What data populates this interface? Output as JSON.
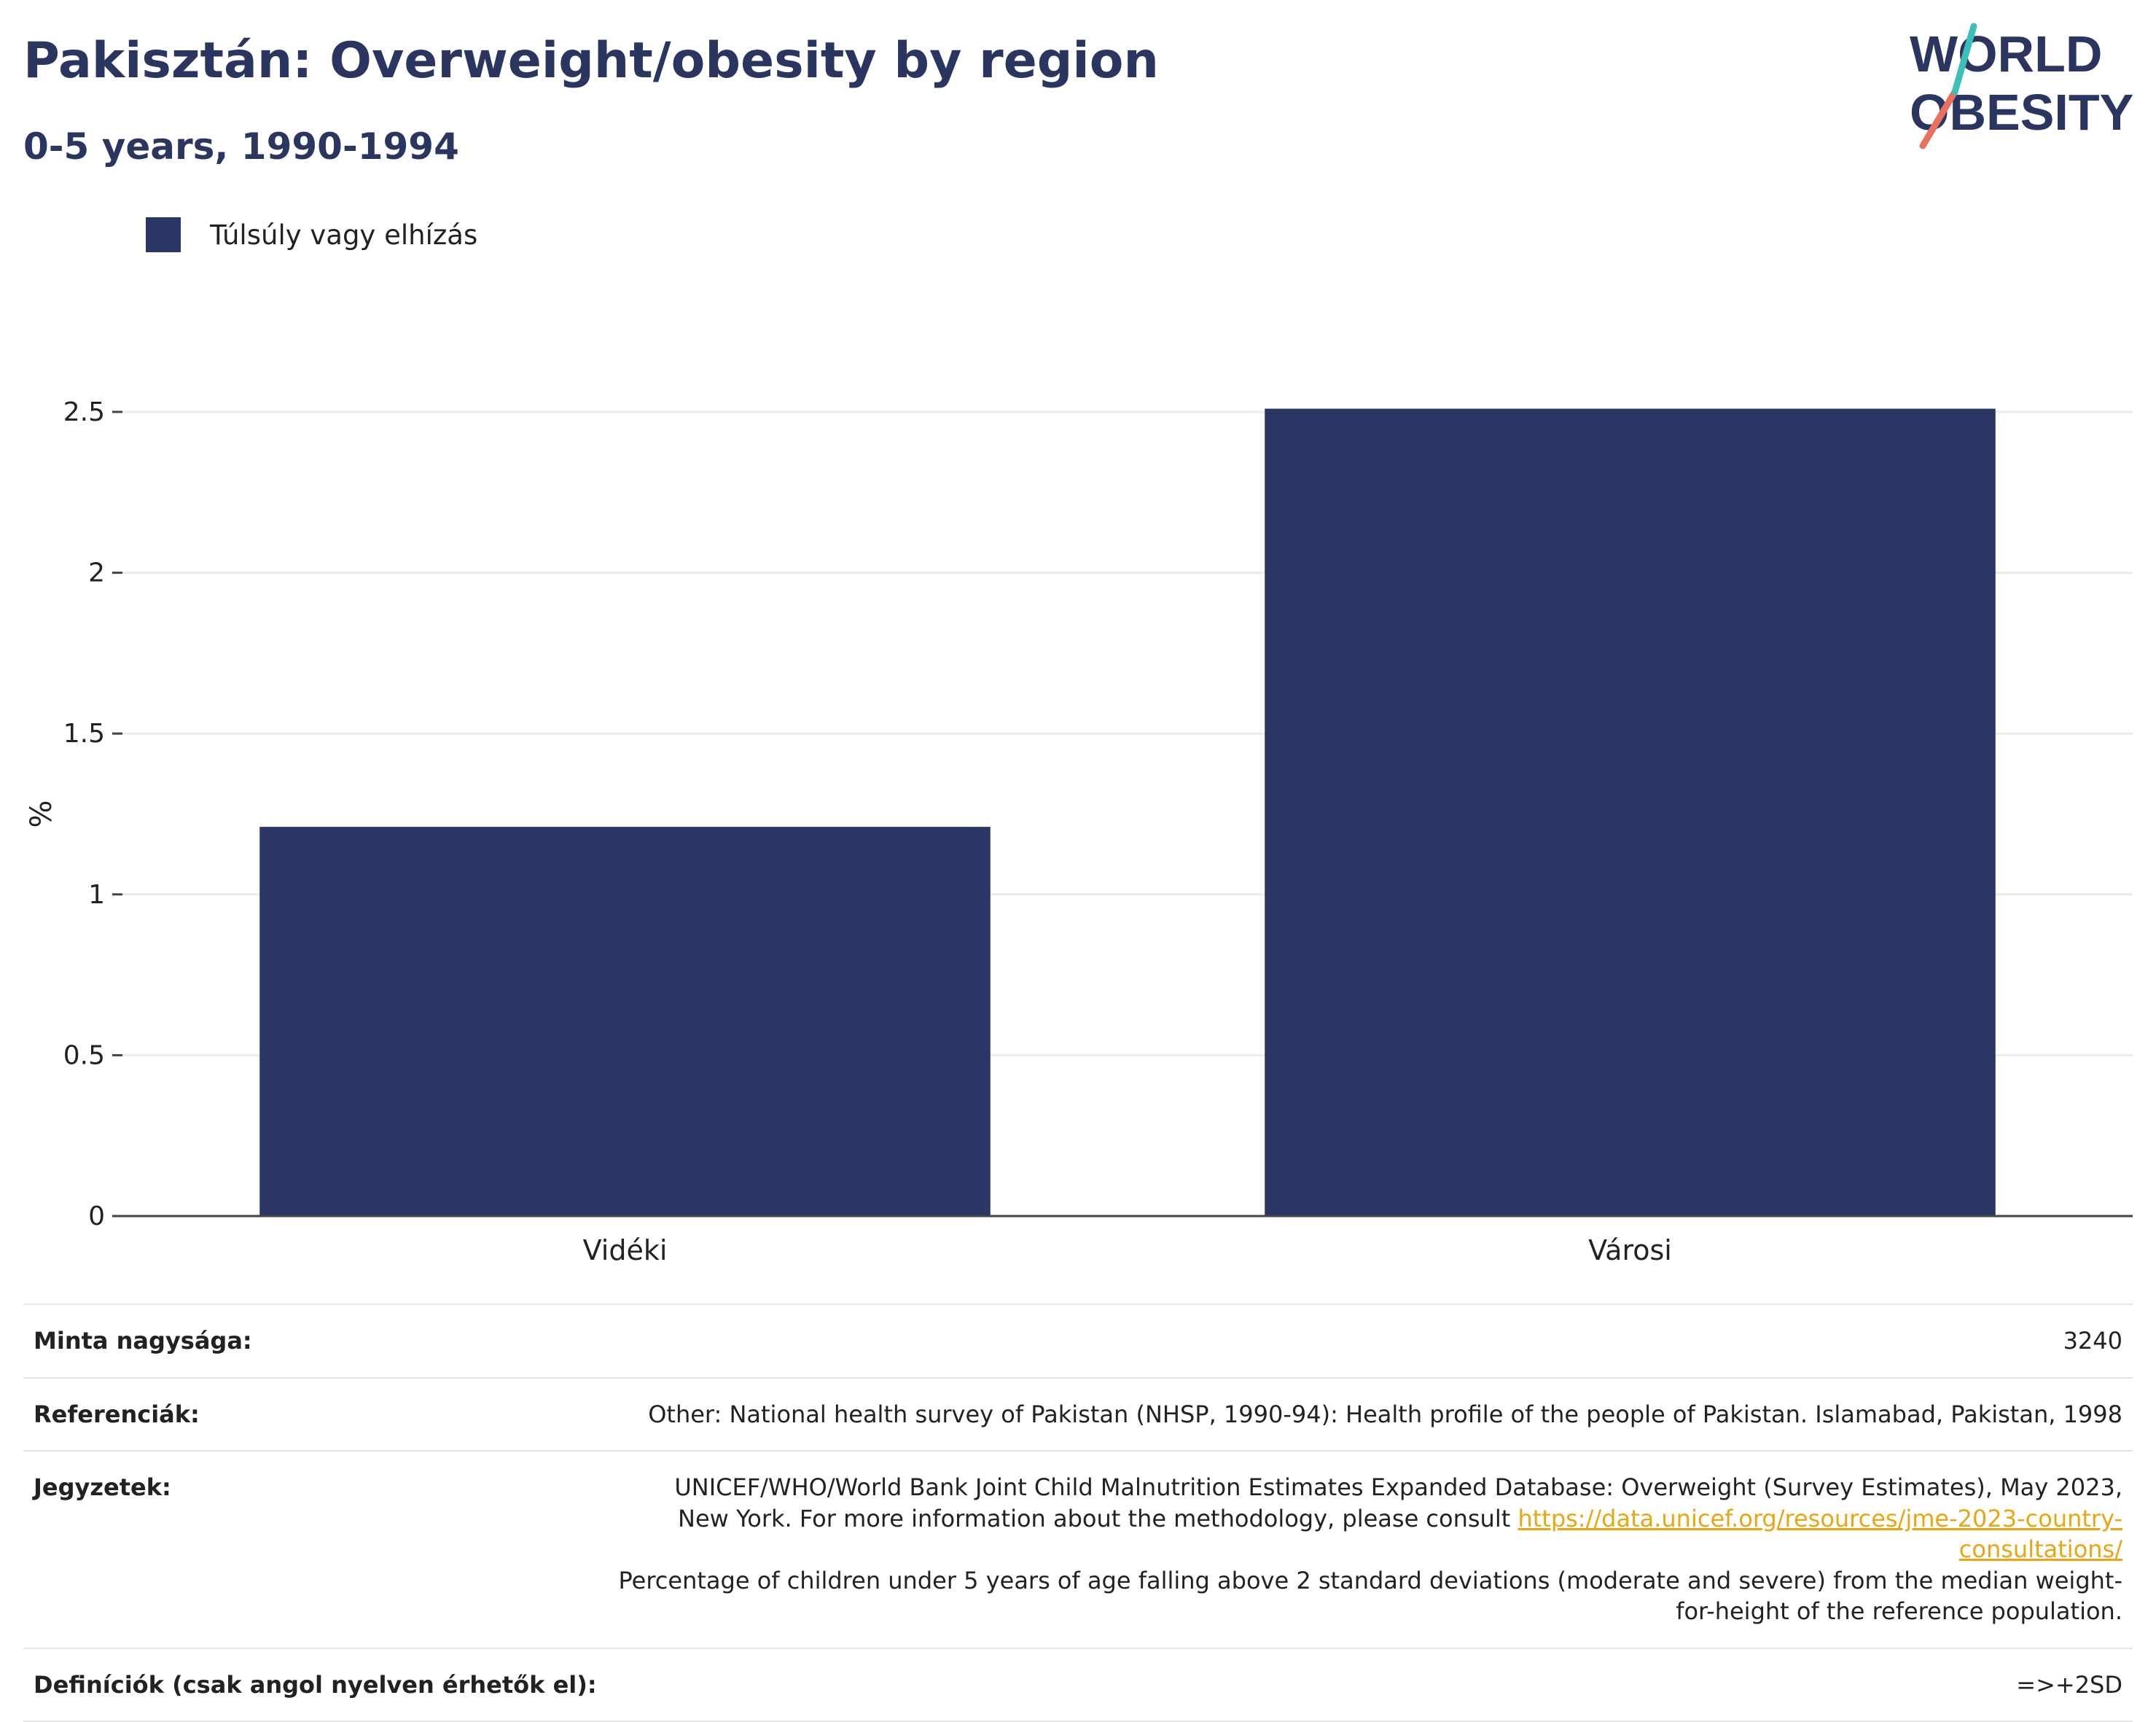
{
  "header": {
    "title": "Pakisztán: Overweight/obesity by region",
    "subtitle": "0-5 years, 1990-1994"
  },
  "logo": {
    "line1": "WORLD",
    "line2": "OBESITY"
  },
  "legend": {
    "label": "Túlsúly vagy elhízás"
  },
  "chart_data": {
    "type": "bar",
    "categories": [
      "Vidéki",
      "Városi"
    ],
    "series": [
      {
        "name": "Túlsúly vagy elhízás",
        "values": [
          1.21,
          2.51
        ],
        "color": "#2a3663"
      }
    ],
    "ylabel": "%",
    "ylim": [
      0,
      2.5
    ],
    "yticks": [
      0,
      0.5,
      1,
      1.5,
      2,
      2.5
    ],
    "ytick_labels": [
      "0",
      "0.5",
      "1",
      "1.5",
      "2",
      "2.5"
    ],
    "grid": true
  },
  "info": {
    "sample_label": "Minta nagysága:",
    "sample_value": "3240",
    "ref_label": "Referenciák:",
    "ref_value": "Other: National health survey of Pakistan (NHSP, 1990-94): Health profile of the people of Pakistan. Islamabad, Pakistan, 1998",
    "notes_label": "Jegyzetek:",
    "notes_text1": "UNICEF/WHO/World Bank Joint Child Malnutrition Estimates Expanded Database: Overweight (Survey Estimates), May 2023, New York. For more information about the methodology, please consult",
    "notes_link": "https://data.unicef.org/resources/jme-2023-country-consultations/",
    "notes_text2": "Percentage of children under 5 years of age falling above 2 standard deviations (moderate and severe) from the median weight-for-height of the reference population.",
    "def_label": "Definíciók (csak angol nyelven érhetők el):",
    "def_value": "=>+2SD"
  }
}
